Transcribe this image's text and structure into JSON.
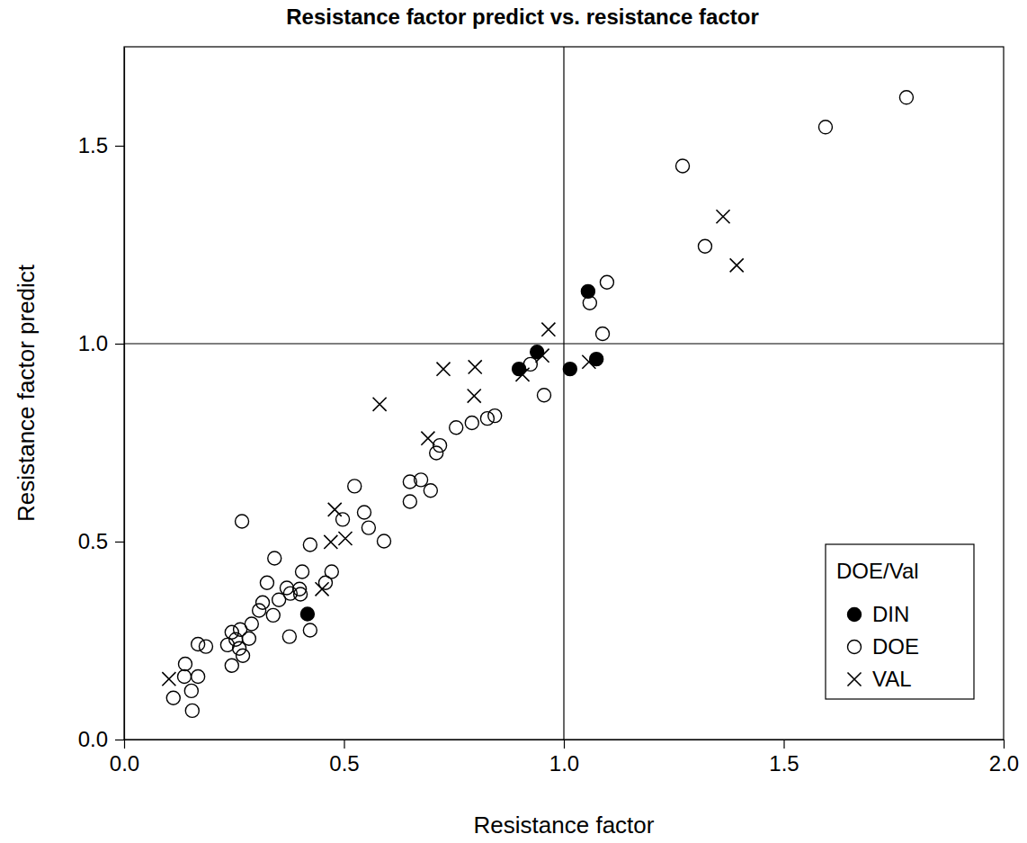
{
  "chart_data": {
    "type": "scatter",
    "title": "Resistance factor predict vs. resistance factor",
    "x_label": "Resistance factor",
    "y_label": "Resistance factor predict",
    "xlim": [
      0,
      2
    ],
    "ylim": [
      0,
      1.75
    ],
    "xticks": [
      {
        "value": 0,
        "label": "0.0"
      },
      {
        "value": 0.5,
        "label": "0.5"
      },
      {
        "value": 1,
        "label": "1.0"
      },
      {
        "value": 1.5,
        "label": "1.5"
      },
      {
        "value": 2,
        "label": "2.0"
      }
    ],
    "yticks": [
      {
        "value": 0,
        "label": "0.0"
      },
      {
        "value": 0.5,
        "label": "0.5"
      },
      {
        "value": 1,
        "label": "1.0"
      },
      {
        "value": 1.5,
        "label": "1.5"
      }
    ],
    "ref_x": 1,
    "ref_y": 1,
    "legend": "bottom-right",
    "legend_title": "DOE/Val",
    "grid": false,
    "series": [
      {
        "name": "DIN",
        "color": "#000000",
        "marker": "filled-circle",
        "x": [
          1.055,
          0.939,
          0.898,
          1.014,
          1.074,
          0.417
        ],
        "values": [
          1.132,
          0.979,
          0.936,
          0.936,
          0.961,
          0.317
        ]
      },
      {
        "name": "DOE",
        "color": "#000000",
        "marker": "circle",
        "x": [
          1.779,
          1.595,
          1.27,
          1.321,
          1.098,
          1.059,
          1.088,
          0.955,
          0.924,
          0.843,
          0.826,
          0.791,
          0.755,
          0.718,
          0.71,
          0.675,
          0.65,
          0.697,
          0.65,
          0.524,
          0.546,
          0.556,
          0.591,
          0.497,
          0.268,
          0.423,
          0.342,
          0.405,
          0.472,
          0.458,
          0.325,
          0.37,
          0.399,
          0.401,
          0.378,
          0.352,
          0.315,
          0.307,
          0.339,
          0.29,
          0.245,
          0.264,
          0.284,
          0.254,
          0.235,
          0.262,
          0.27,
          0.245,
          0.376,
          0.423,
          0.168,
          0.186,
          0.139,
          0.137,
          0.168,
          0.153,
          0.112,
          0.155
        ],
        "values": [
          1.622,
          1.547,
          1.449,
          1.246,
          1.155,
          1.103,
          1.025,
          0.87,
          0.948,
          0.818,
          0.811,
          0.8,
          0.788,
          0.743,
          0.724,
          0.656,
          0.651,
          0.629,
          0.601,
          0.64,
          0.574,
          0.535,
          0.501,
          0.556,
          0.551,
          0.492,
          0.458,
          0.424,
          0.424,
          0.396,
          0.396,
          0.383,
          0.38,
          0.367,
          0.369,
          0.353,
          0.346,
          0.326,
          0.314,
          0.292,
          0.271,
          0.278,
          0.255,
          0.253,
          0.239,
          0.23,
          0.212,
          0.187,
          0.26,
          0.276,
          0.241,
          0.235,
          0.191,
          0.159,
          0.159,
          0.123,
          0.105,
          0.073
        ]
      },
      {
        "name": "VAL",
        "color": "#000000",
        "marker": "x",
        "x": [
          0.102,
          0.581,
          0.726,
          0.798,
          0.796,
          0.691,
          0.479,
          0.47,
          0.503,
          0.45,
          0.965,
          0.906,
          0.951,
          1.057,
          1.362,
          1.393
        ],
        "values": [
          0.153,
          0.847,
          0.936,
          0.941,
          0.868,
          0.761,
          0.581,
          0.499,
          0.508,
          0.38,
          1.036,
          0.922,
          0.97,
          0.954,
          1.321,
          1.198
        ]
      }
    ]
  }
}
